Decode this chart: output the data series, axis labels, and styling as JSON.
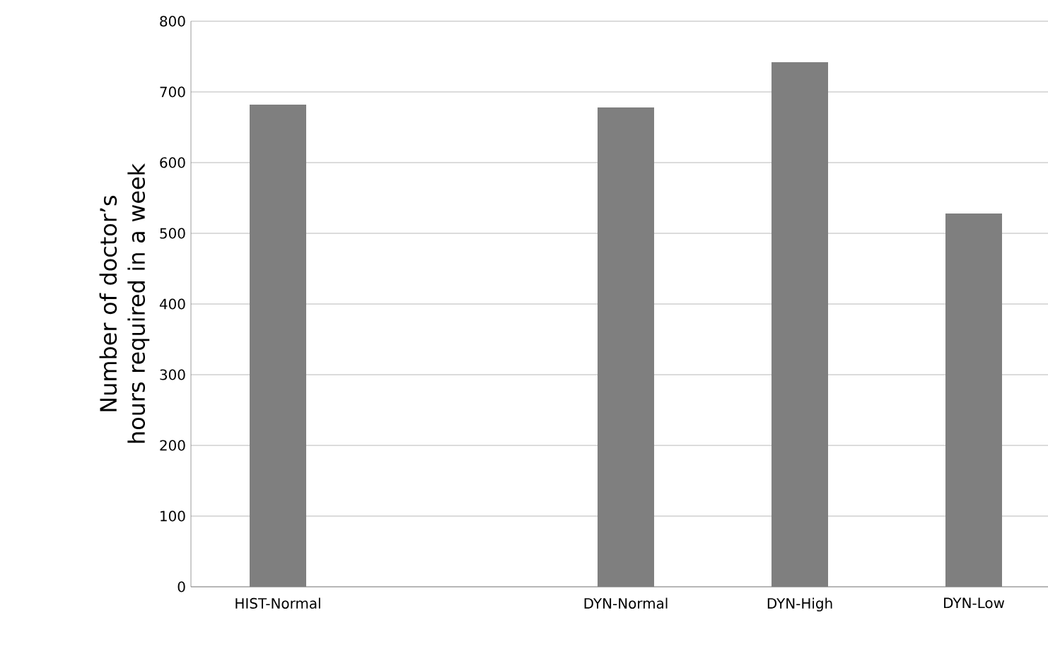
{
  "chart_data": {
    "type": "bar",
    "ylabel": "Number of doctor’s hours required in a week",
    "categories": [
      "HIST-Normal",
      null,
      "DYN-Normal",
      "DYN-High",
      "DYN-Low"
    ],
    "values": [
      682,
      null,
      678,
      742,
      528
    ],
    "color": "#7f7f7f",
    "ylim": [
      0,
      800
    ],
    "yticks": [
      0,
      100,
      200,
      300,
      400,
      500,
      600,
      700,
      800
    ],
    "grid": "y"
  }
}
